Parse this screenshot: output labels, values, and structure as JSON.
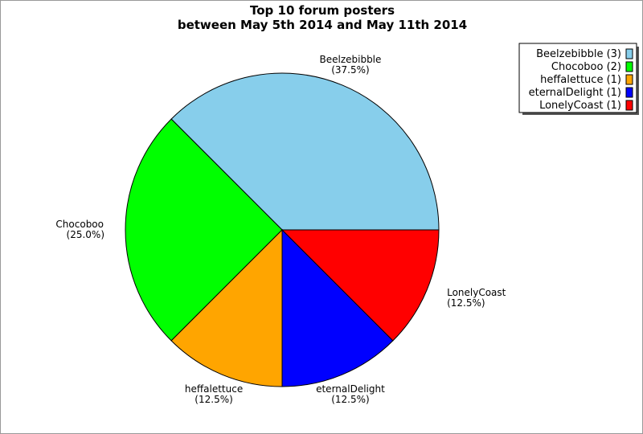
{
  "chart_data": {
    "type": "pie",
    "title": "Top 10 forum posters",
    "subtitle": "between May 5th 2014 and May 11th 2014",
    "start_angle_deg": 0,
    "direction": "counterclockwise",
    "legend_position": "top-right",
    "slices": [
      {
        "label": "Beelzebibble",
        "value": 3,
        "percent": "37.5%",
        "legend": "Beelzebibble (3)",
        "color": "#87CEEB"
      },
      {
        "label": "Chocoboo",
        "value": 2,
        "percent": "25.0%",
        "legend": "Chocoboo (2)",
        "color": "#00FF00"
      },
      {
        "label": "heffalettuce",
        "value": 1,
        "percent": "12.5%",
        "legend": "heffalettuce (1)",
        "color": "#FFA500"
      },
      {
        "label": "eternalDelight",
        "value": 1,
        "percent": "12.5%",
        "legend": "eternalDelight (1)",
        "color": "#0000FF"
      },
      {
        "label": "LonelyCoast",
        "value": 1,
        "percent": "12.5%",
        "legend": "LonelyCoast (1)",
        "color": "#FF0000"
      }
    ]
  }
}
